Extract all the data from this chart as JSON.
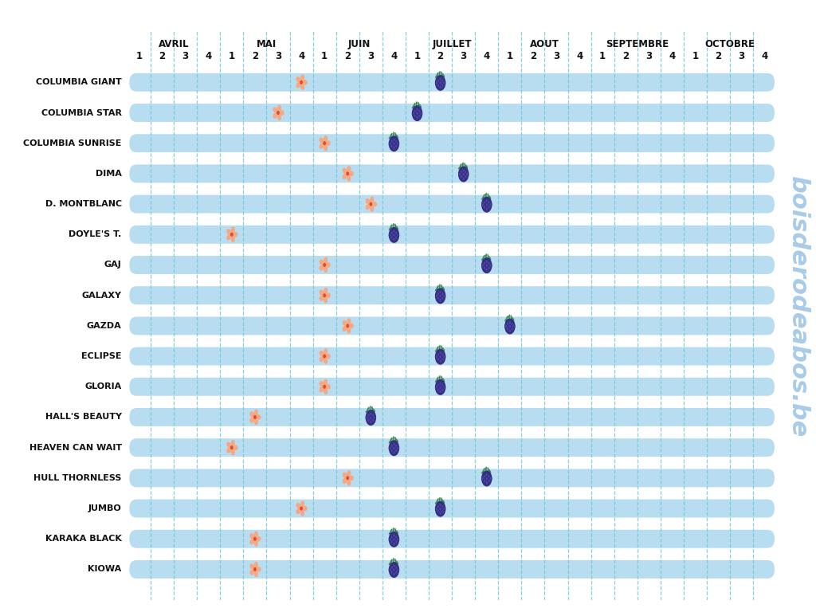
{
  "varieties": [
    "COLUMBIA GIANT",
    "COLUMBIA STAR",
    "COLUMBIA SUNRISE",
    "DIMA",
    "D. MONTBLANC",
    "DOYLE'S T.",
    "GAJ",
    "GALAXY",
    "GAZDA",
    "ECLIPSE",
    "GLORIA",
    "HALL'S BEAUTY",
    "HEAVEN CAN WAIT",
    "HULL THORNLESS",
    "JUMBO",
    "KARAKA BLACK",
    "KIOWA"
  ],
  "months": [
    "AVRIL",
    "MAI",
    "JUIN",
    "JUILLET",
    "AOUT",
    "SEPTEMBRE",
    "OCTOBRE"
  ],
  "flower_positions": [
    {
      "variety": "COLUMBIA GIANT",
      "month_idx": 1,
      "week": 4
    },
    {
      "variety": "COLUMBIA STAR",
      "month_idx": 1,
      "week": 3
    },
    {
      "variety": "COLUMBIA SUNRISE",
      "month_idx": 2,
      "week": 1
    },
    {
      "variety": "DIMA",
      "month_idx": 2,
      "week": 2
    },
    {
      "variety": "D. MONTBLANC",
      "month_idx": 2,
      "week": 3
    },
    {
      "variety": "DOYLE'S T.",
      "month_idx": 1,
      "week": 1
    },
    {
      "variety": "GAJ",
      "month_idx": 2,
      "week": 1
    },
    {
      "variety": "GALAXY",
      "month_idx": 2,
      "week": 1
    },
    {
      "variety": "GAZDA",
      "month_idx": 2,
      "week": 2
    },
    {
      "variety": "ECLIPSE",
      "month_idx": 2,
      "week": 1
    },
    {
      "variety": "GLORIA",
      "month_idx": 2,
      "week": 1
    },
    {
      "variety": "HALL'S BEAUTY",
      "month_idx": 1,
      "week": 2
    },
    {
      "variety": "HEAVEN CAN WAIT",
      "month_idx": 1,
      "week": 1
    },
    {
      "variety": "HULL THORNLESS",
      "month_idx": 2,
      "week": 2
    },
    {
      "variety": "JUMBO",
      "month_idx": 1,
      "week": 4
    },
    {
      "variety": "KARAKA BLACK",
      "month_idx": 1,
      "week": 2
    },
    {
      "variety": "KIOWA",
      "month_idx": 1,
      "week": 2
    }
  ],
  "berry_positions": [
    {
      "variety": "COLUMBIA GIANT",
      "month_idx": 3,
      "week": 2
    },
    {
      "variety": "COLUMBIA STAR",
      "month_idx": 3,
      "week": 1
    },
    {
      "variety": "COLUMBIA SUNRISE",
      "month_idx": 2,
      "week": 4
    },
    {
      "variety": "DIMA",
      "month_idx": 3,
      "week": 3
    },
    {
      "variety": "D. MONTBLANC",
      "month_idx": 3,
      "week": 4
    },
    {
      "variety": "DOYLE'S T.",
      "month_idx": 2,
      "week": 4
    },
    {
      "variety": "GAJ",
      "month_idx": 3,
      "week": 4
    },
    {
      "variety": "GALAXY",
      "month_idx": 3,
      "week": 2
    },
    {
      "variety": "GAZDA",
      "month_idx": 4,
      "week": 1
    },
    {
      "variety": "ECLIPSE",
      "month_idx": 3,
      "week": 2
    },
    {
      "variety": "GLORIA",
      "month_idx": 3,
      "week": 2
    },
    {
      "variety": "HALL'S BEAUTY",
      "month_idx": 2,
      "week": 3
    },
    {
      "variety": "HEAVEN CAN WAIT",
      "month_idx": 2,
      "week": 4
    },
    {
      "variety": "HULL THORNLESS",
      "month_idx": 3,
      "week": 4
    },
    {
      "variety": "JUMBO",
      "month_idx": 3,
      "week": 2
    },
    {
      "variety": "KARAKA BLACK",
      "month_idx": 2,
      "week": 4
    },
    {
      "variety": "KIOWA",
      "month_idx": 2,
      "week": 4
    }
  ],
  "row_color": "#b8dcf0",
  "bg_color": "#ffffff",
  "flower_petal_color": "#f5a882",
  "flower_center_color": "#e8472a",
  "berry_color": "#353080",
  "berry_drupe_color": "#4a44a8",
  "berry_leaf_color": "#3a8c55",
  "label_color": "#111111",
  "dashed_line_color": "#70c8d8",
  "watermark_color": "#a8cce8",
  "total_cols": 28
}
